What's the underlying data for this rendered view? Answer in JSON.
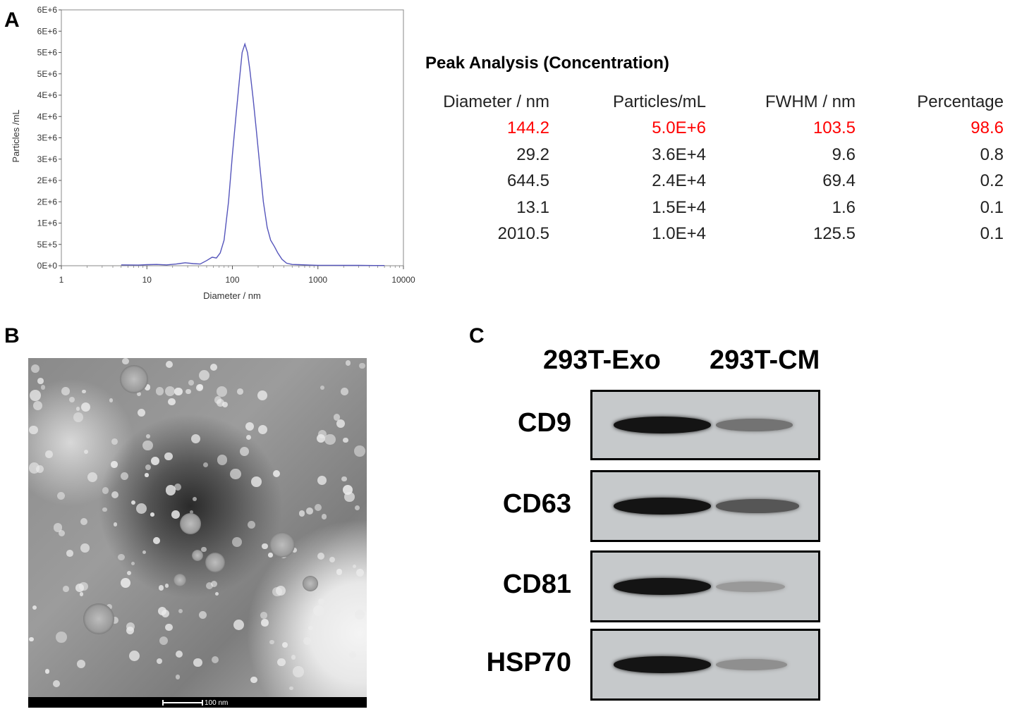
{
  "panels": {
    "a": "A",
    "b": "B",
    "c": "C"
  },
  "chart_data": {
    "type": "line",
    "xlabel": "Diameter / nm",
    "ylabel": "Particles /mL",
    "x_scale": "log",
    "xlim": [
      1,
      10000
    ],
    "ylim": [
      0,
      6000000
    ],
    "x_ticks": [
      "1",
      "10",
      "100",
      "1000",
      "10000"
    ],
    "y_ticks": [
      "0E+0",
      "5E+5",
      "1E+6",
      "2E+6",
      "2E+6",
      "3E+6",
      "3E+6",
      "4E+6",
      "4E+6",
      "5E+6",
      "5E+6",
      "6E+6",
      "6E+6"
    ],
    "grid": true,
    "color": "#5555bb",
    "series": [
      {
        "x": [
          5,
          8,
          10,
          13,
          17,
          22,
          28,
          35,
          42,
          50,
          58,
          65,
          72,
          80,
          90,
          100,
          110,
          120,
          130,
          140,
          150,
          160,
          175,
          190,
          210,
          230,
          255,
          280,
          310,
          340,
          380,
          430,
          500,
          600,
          800,
          1000,
          1500,
          2000,
          3000,
          4500,
          6000
        ],
        "y": [
          20000,
          15000,
          25000,
          30000,
          20000,
          40000,
          70000,
          50000,
          40000,
          120000,
          200000,
          180000,
          300000,
          600000,
          1500000,
          2600000,
          3500000,
          4300000,
          5000000,
          5200000,
          5000000,
          4600000,
          3900000,
          3200000,
          2300000,
          1500000,
          900000,
          600000,
          450000,
          300000,
          150000,
          60000,
          30000,
          25000,
          15000,
          10000,
          10000,
          8000,
          8000,
          5000,
          5000
        ]
      }
    ]
  },
  "peak_analysis": {
    "title": "Peak Analysis (Concentration)",
    "headers": [
      "Diameter / nm",
      "Particles/mL",
      "FWHM / nm",
      "Percentage"
    ],
    "highlight_color": "#ff0000",
    "rows": [
      [
        "144.2",
        "5.0E+6",
        "103.5",
        "98.6"
      ],
      [
        "29.2",
        "3.6E+4",
        "9.6",
        "0.8"
      ],
      [
        "644.5",
        "2.4E+4",
        "69.4",
        "0.2"
      ],
      [
        "13.1",
        "1.5E+4",
        "1.6",
        "0.1"
      ],
      [
        "2010.5",
        "1.0E+4",
        "125.5",
        "0.1"
      ]
    ]
  },
  "tem": {
    "scale_bar": "100 nm"
  },
  "western_blot": {
    "lanes": [
      "293T-Exo",
      "293T-CM"
    ],
    "markers": [
      {
        "name": "CD9",
        "intensity": [
          0.95,
          0.45
        ]
      },
      {
        "name": "CD63",
        "intensity": [
          0.95,
          0.6
        ]
      },
      {
        "name": "CD81",
        "intensity": [
          0.95,
          0.25
        ]
      },
      {
        "name": "HSP70",
        "intensity": [
          0.95,
          0.3
        ]
      }
    ]
  }
}
